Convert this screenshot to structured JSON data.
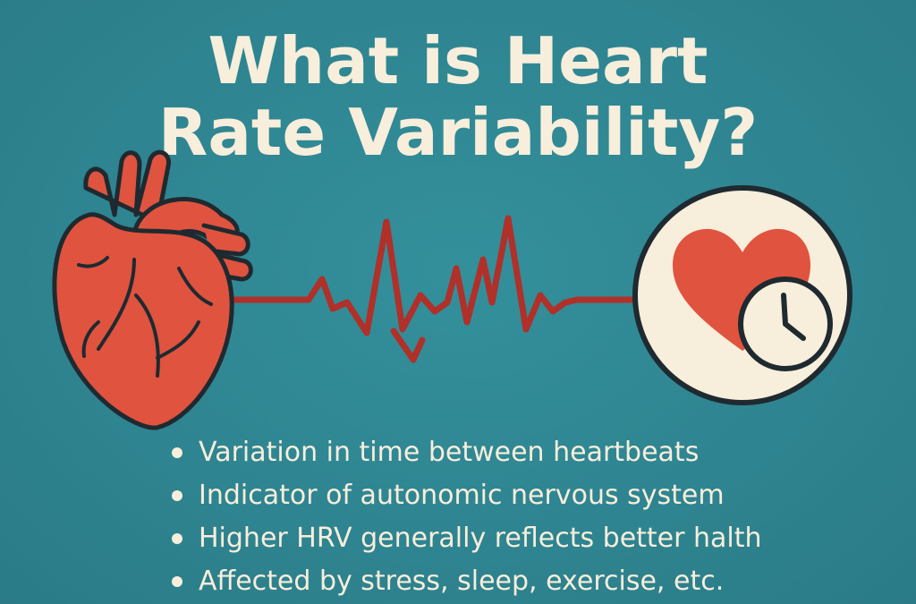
{
  "title": {
    "line1": "What is Heart",
    "line2": "Rate Variability?"
  },
  "illustration": {
    "left_icon": "anatomical-heart-icon",
    "center_icon": "ecg-waveform-icon",
    "right_icon": "heart-with-clock-icon"
  },
  "bullets": [
    "Variation in time between heartbeats",
    "Indicator of autonomic nervous system",
    "Higher HRV generally reflects better halth",
    "Affected by stress, sleep, exercise, etc."
  ],
  "colors": {
    "background": "#2f8591",
    "text": "#f7eedb",
    "heart": "#e0533f",
    "ecg_line": "#b0302a",
    "outline": "#1f2a30"
  }
}
